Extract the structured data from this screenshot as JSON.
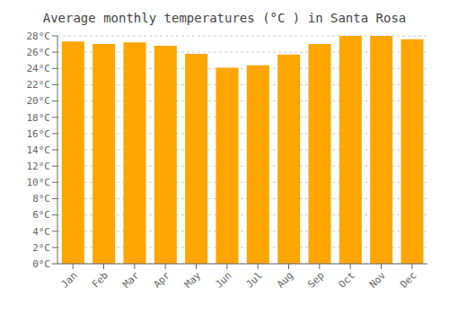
{
  "chart_data": {
    "type": "bar",
    "title": "Average monthly temperatures (°C ) in Santa Rosa",
    "categories": [
      "Jan",
      "Feb",
      "Mar",
      "Apr",
      "May",
      "Jun",
      "Jul",
      "Aug",
      "Sep",
      "Oct",
      "Nov",
      "Dec"
    ],
    "values": [
      27.3,
      27.0,
      27.2,
      26.8,
      25.8,
      24.1,
      24.4,
      25.7,
      27.0,
      28.0,
      28.0,
      27.6
    ],
    "color": "#FFA500",
    "ylim": [
      0,
      28
    ],
    "yticks": [
      {
        "value": 0,
        "label": "0°C"
      },
      {
        "value": 2,
        "label": "2°C"
      },
      {
        "value": 4,
        "label": "4°C"
      },
      {
        "value": 6,
        "label": "6°C"
      },
      {
        "value": 8,
        "label": "8°C"
      },
      {
        "value": 10,
        "label": "10°C"
      },
      {
        "value": 12,
        "label": "12°C"
      },
      {
        "value": 14,
        "label": "14°C"
      },
      {
        "value": 16,
        "label": "16°C"
      },
      {
        "value": 18,
        "label": "18°C"
      },
      {
        "value": 20,
        "label": "20°C"
      },
      {
        "value": 22,
        "label": "22°C"
      },
      {
        "value": 24,
        "label": "24°C"
      },
      {
        "value": 26,
        "label": "26°C"
      },
      {
        "value": 28,
        "label": "28°C"
      }
    ],
    "grid": true
  }
}
